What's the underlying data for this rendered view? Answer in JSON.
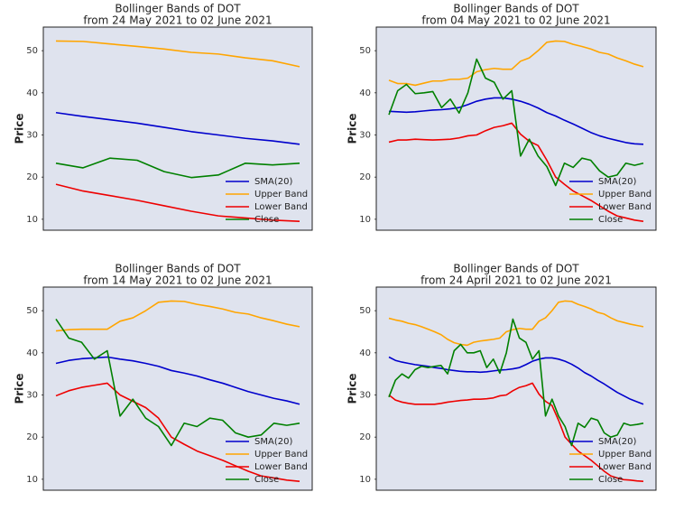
{
  "chart_data": [
    {
      "type": "line",
      "title": "Bollinger Bands of DOT",
      "subtitle": "from 24 May 2021 to 02 June 2021",
      "ylabel": "Price",
      "categories": [
        null,
        null,
        null,
        null,
        null,
        null,
        null,
        null,
        null,
        null
      ],
      "ylim": [
        7.4,
        55.6
      ],
      "yticks": [
        10,
        20,
        30,
        40,
        50
      ],
      "legend": "lower right",
      "series": [
        {
          "name": "SMA(20)",
          "color": "#0000cc",
          "values": [
            35.3,
            34.4,
            33.6,
            32.8,
            31.8,
            30.8,
            30.0,
            29.2,
            28.6,
            27.8
          ]
        },
        {
          "name": "Upper Band",
          "color": "#ffa500",
          "values": [
            52.3,
            52.2,
            51.6,
            51.0,
            50.4,
            49.6,
            49.2,
            48.3,
            47.6,
            46.2
          ]
        },
        {
          "name": "Lower Band",
          "color": "#ee0000",
          "values": [
            18.3,
            16.7,
            15.6,
            14.5,
            13.2,
            11.9,
            10.8,
            10.3,
            9.8,
            9.5
          ]
        },
        {
          "name": "Close",
          "color": "#008000",
          "values": [
            23.3,
            22.2,
            24.5,
            24.0,
            21.3,
            19.9,
            20.5,
            23.3,
            22.9,
            23.3
          ]
        }
      ]
    },
    {
      "type": "line",
      "title": "Bollinger Bands of DOT",
      "subtitle": "from 04 May 2021 to 02 June 2021",
      "ylabel": "Price",
      "categories": [
        null,
        null,
        null,
        null,
        null,
        null,
        null,
        null,
        null,
        null,
        null,
        null,
        null,
        null,
        null,
        null,
        null,
        null,
        null,
        null,
        null,
        null,
        null,
        null,
        null,
        null,
        null,
        null,
        null,
        null
      ],
      "ylim": [
        7.4,
        55.6
      ],
      "yticks": [
        10,
        20,
        30,
        40,
        50
      ],
      "legend": "lower right",
      "series": [
        {
          "name": "SMA(20)",
          "color": "#0000cc",
          "values": [
            35.6,
            35.5,
            35.4,
            35.5,
            35.7,
            35.9,
            36.0,
            36.2,
            36.5,
            37.2,
            38.0,
            38.5,
            38.8,
            38.8,
            38.5,
            38.0,
            37.3,
            36.4,
            35.3,
            34.5,
            33.5,
            32.6,
            31.6,
            30.6,
            29.8,
            29.2,
            28.7,
            28.2,
            27.9,
            27.8
          ]
        },
        {
          "name": "Upper Band",
          "color": "#ffa500",
          "values": [
            43.0,
            42.2,
            42.2,
            41.8,
            42.3,
            42.8,
            42.8,
            43.2,
            43.2,
            43.5,
            45.0,
            45.5,
            45.8,
            45.6,
            45.6,
            47.5,
            48.3,
            50.0,
            52.0,
            52.3,
            52.2,
            51.5,
            51.0,
            50.4,
            49.6,
            49.2,
            48.3,
            47.6,
            46.8,
            46.2
          ]
        },
        {
          "name": "Lower Band",
          "color": "#ee0000",
          "values": [
            28.3,
            28.8,
            28.8,
            29.0,
            28.9,
            28.8,
            28.9,
            29.0,
            29.3,
            29.8,
            30.0,
            31.0,
            31.8,
            32.2,
            32.8,
            30.2,
            28.5,
            27.5,
            24.0,
            20.0,
            18.3,
            16.7,
            15.6,
            14.5,
            13.2,
            11.9,
            10.8,
            10.3,
            9.8,
            9.5
          ]
        },
        {
          "name": "Close",
          "color": "#008000",
          "values": [
            34.8,
            40.5,
            42.0,
            39.8,
            40.0,
            40.3,
            36.5,
            38.5,
            35.2,
            40.0,
            48.0,
            43.5,
            42.5,
            38.5,
            40.5,
            25.0,
            29.0,
            25.0,
            22.5,
            18.0,
            23.3,
            22.3,
            24.5,
            24.0,
            21.5,
            20.0,
            20.5,
            23.3,
            22.8,
            23.3
          ]
        }
      ]
    },
    {
      "type": "line",
      "title": "Bollinger Bands of DOT",
      "subtitle": "from 14 May 2021 to 02 June 2021",
      "ylabel": "Price",
      "categories": [
        null,
        null,
        null,
        null,
        null,
        null,
        null,
        null,
        null,
        null,
        null,
        null,
        null,
        null,
        null,
        null,
        null,
        null,
        null,
        null
      ],
      "ylim": [
        7.4,
        55.6
      ],
      "yticks": [
        10,
        20,
        30,
        40,
        50
      ],
      "legend": "lower right",
      "series": [
        {
          "name": "SMA(20)",
          "color": "#0000cc",
          "values": [
            37.5,
            38.2,
            38.6,
            38.8,
            39.0,
            38.5,
            38.1,
            37.5,
            36.8,
            35.8,
            35.2,
            34.5,
            33.6,
            32.8,
            31.8,
            30.8,
            30.0,
            29.2,
            28.6,
            27.8
          ]
        },
        {
          "name": "Upper Band",
          "color": "#ffa500",
          "values": [
            45.2,
            45.5,
            45.6,
            45.6,
            45.6,
            47.5,
            48.3,
            50.0,
            52.0,
            52.3,
            52.2,
            51.5,
            51.0,
            50.4,
            49.6,
            49.2,
            48.3,
            47.6,
            46.8,
            46.2
          ]
        },
        {
          "name": "Lower Band",
          "color": "#ee0000",
          "values": [
            29.8,
            31.0,
            31.8,
            32.3,
            32.8,
            30.0,
            28.5,
            27.0,
            24.5,
            20.0,
            18.3,
            16.7,
            15.6,
            14.5,
            13.2,
            11.9,
            10.8,
            10.3,
            9.8,
            9.5
          ]
        },
        {
          "name": "Close",
          "color": "#008000",
          "values": [
            48.0,
            43.5,
            42.5,
            38.5,
            40.5,
            25.0,
            29.0,
            24.5,
            22.5,
            18.0,
            23.3,
            22.5,
            24.5,
            24.0,
            21.0,
            20.0,
            20.5,
            23.3,
            22.8,
            23.3
          ]
        }
      ]
    },
    {
      "type": "line",
      "title": "Bollinger Bands of DOT",
      "subtitle": "from 24 April 2021 to 02 June 2021",
      "ylabel": "Price",
      "categories": [
        null,
        null,
        null,
        null,
        null,
        null,
        null,
        null,
        null,
        null,
        null,
        null,
        null,
        null,
        null,
        null,
        null,
        null,
        null,
        null,
        null,
        null,
        null,
        null,
        null,
        null,
        null,
        null,
        null,
        null,
        null,
        null,
        null,
        null,
        null,
        null,
        null,
        null,
        null,
        null
      ],
      "ylim": [
        7.4,
        55.6
      ],
      "yticks": [
        10,
        20,
        30,
        40,
        50
      ],
      "legend": "lower right",
      "series": [
        {
          "name": "SMA(20)",
          "color": "#0000cc",
          "values": [
            39.0,
            38.2,
            37.8,
            37.5,
            37.2,
            37.0,
            36.8,
            36.5,
            36.3,
            36.0,
            35.8,
            35.6,
            35.5,
            35.5,
            35.4,
            35.5,
            35.7,
            35.9,
            36.0,
            36.2,
            36.5,
            37.2,
            38.0,
            38.5,
            38.8,
            38.8,
            38.5,
            38.0,
            37.3,
            36.4,
            35.3,
            34.5,
            33.5,
            32.6,
            31.6,
            30.6,
            29.8,
            29.0,
            28.4,
            27.8
          ]
        },
        {
          "name": "Upper Band",
          "color": "#ffa500",
          "values": [
            48.2,
            47.8,
            47.5,
            47.0,
            46.7,
            46.2,
            45.6,
            45.0,
            44.3,
            43.2,
            42.4,
            42.0,
            41.8,
            42.5,
            42.8,
            43.0,
            43.2,
            43.5,
            45.0,
            45.5,
            45.8,
            45.6,
            45.6,
            47.5,
            48.3,
            50.0,
            52.0,
            52.3,
            52.2,
            51.5,
            51.0,
            50.4,
            49.6,
            49.2,
            48.3,
            47.6,
            47.2,
            46.8,
            46.5,
            46.2
          ]
        },
        {
          "name": "Lower Band",
          "color": "#ee0000",
          "values": [
            30.0,
            28.8,
            28.3,
            28.0,
            27.8,
            27.8,
            27.8,
            27.8,
            28.0,
            28.3,
            28.5,
            28.7,
            28.8,
            29.0,
            29.0,
            29.1,
            29.3,
            29.8,
            30.0,
            31.0,
            31.8,
            32.2,
            32.8,
            30.2,
            28.5,
            27.5,
            24.0,
            20.0,
            18.3,
            16.7,
            15.6,
            14.5,
            13.2,
            11.9,
            10.8,
            10.3,
            9.9,
            9.8,
            9.6,
            9.5
          ]
        },
        {
          "name": "Close",
          "color": "#008000",
          "values": [
            29.5,
            33.5,
            35.0,
            34.0,
            36.0,
            36.8,
            36.5,
            36.8,
            37.0,
            35.0,
            40.5,
            42.0,
            40.0,
            40.0,
            40.5,
            36.5,
            38.5,
            35.2,
            40.0,
            48.0,
            43.5,
            42.5,
            38.5,
            40.5,
            25.0,
            29.0,
            25.0,
            22.5,
            18.0,
            23.3,
            22.3,
            24.5,
            24.0,
            21.0,
            20.0,
            20.5,
            23.3,
            22.8,
            23.0,
            23.3
          ]
        }
      ]
    }
  ]
}
